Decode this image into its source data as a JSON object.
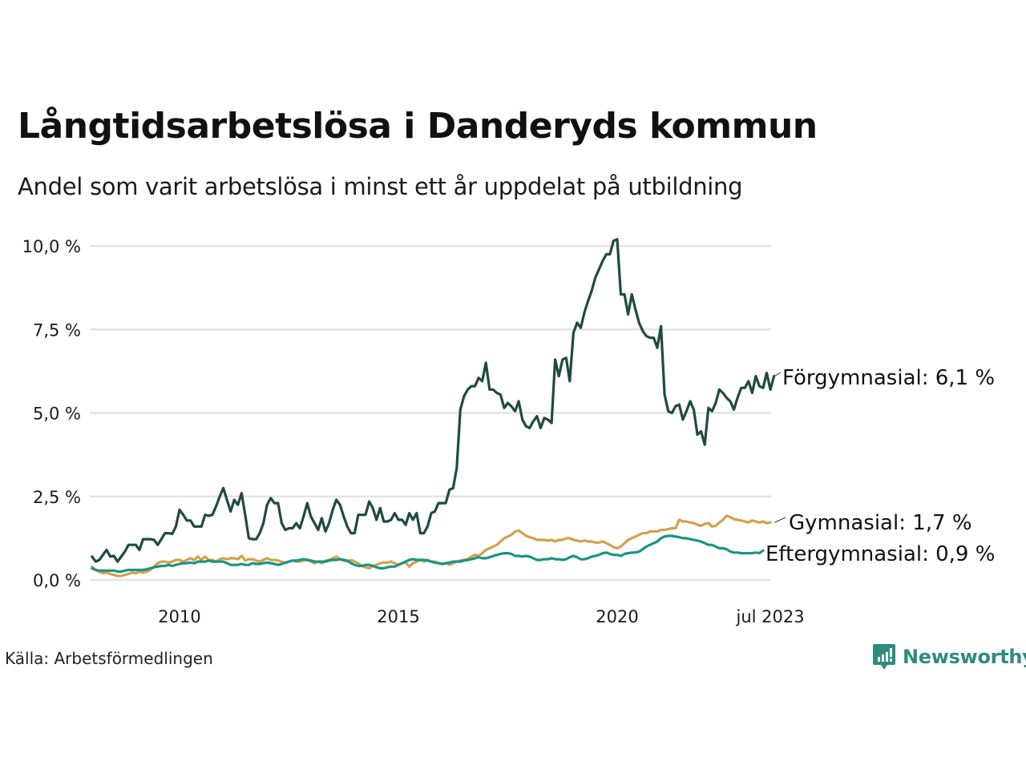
{
  "header": {
    "title": "Långtidsarbetslösa i Danderyds kommun",
    "subtitle": "Andel som varit arbetslösa i minst ett år uppdelat på utbildning"
  },
  "footer": {
    "source": "Källa: Arbetsförmedlingen",
    "logo_text": "Newsworthy",
    "logo_icon": "bar-chart-speech-bubble-icon",
    "brand_color": "#2e8b7e"
  },
  "chart_data": {
    "type": "line",
    "title": "Långtidsarbetslösa i Danderyds kommun",
    "subtitle": "Andel som varit arbetslösa i minst ett år uppdelat på utbildning",
    "xlabel": "",
    "ylabel": "",
    "x_start": "2008-01",
    "x_end": "2023-07",
    "x_frequency": "monthly",
    "x_ticks": [
      {
        "label": "2010",
        "date": "2010-01"
      },
      {
        "label": "2015",
        "date": "2015-01"
      },
      {
        "label": "2020",
        "date": "2020-01"
      },
      {
        "label": "jul 2023",
        "date": "2023-07"
      }
    ],
    "ylim": [
      0,
      10
    ],
    "y_ticks": [
      {
        "value": 0,
        "label": "0,0 %"
      },
      {
        "value": 2.5,
        "label": "2,5 %"
      },
      {
        "value": 5,
        "label": "5,0 %"
      },
      {
        "value": 7.5,
        "label": "7,5 %"
      },
      {
        "value": 10,
        "label": "10,0 %"
      }
    ],
    "grid": "horizontal",
    "legend": "direct-labels-right",
    "series": [
      {
        "name": "Förgymnasial",
        "label": "Förgymnasial: 6,1 %",
        "color": "#1f4a42",
        "values": [
          0.7,
          0.55,
          0.6,
          0.75,
          0.9,
          0.7,
          0.72,
          0.55,
          0.7,
          0.85,
          1.05,
          1.05,
          1.05,
          0.9,
          1.22,
          1.22,
          1.22,
          1.2,
          1.05,
          1.22,
          1.4,
          1.4,
          1.38,
          1.6,
          2.1,
          1.95,
          1.78,
          1.78,
          1.6,
          1.6,
          1.6,
          1.95,
          1.92,
          1.95,
          2.2,
          2.5,
          2.75,
          2.4,
          2.05,
          2.4,
          2.25,
          2.6,
          1.95,
          1.25,
          1.22,
          1.22,
          1.4,
          1.7,
          2.25,
          2.45,
          2.3,
          2.3,
          1.7,
          1.5,
          1.55,
          1.55,
          1.7,
          1.55,
          1.9,
          2.3,
          1.9,
          1.7,
          1.5,
          1.85,
          1.45,
          1.7,
          2.1,
          2.4,
          2.25,
          1.9,
          1.6,
          1.4,
          1.4,
          1.95,
          1.95,
          1.95,
          2.35,
          2.15,
          1.8,
          2.15,
          1.75,
          1.75,
          1.8,
          2.0,
          1.8,
          1.8,
          1.65,
          2.0,
          1.8,
          2.0,
          1.4,
          1.4,
          1.6,
          2.0,
          2.05,
          2.3,
          2.3,
          2.3,
          2.7,
          2.75,
          3.35,
          5.1,
          5.5,
          5.7,
          5.8,
          5.8,
          6.05,
          5.95,
          6.5,
          5.7,
          5.7,
          5.6,
          5.55,
          5.15,
          5.3,
          5.2,
          5.05,
          5.35,
          4.8,
          4.6,
          4.55,
          4.75,
          4.9,
          4.55,
          4.85,
          4.8,
          4.7,
          6.6,
          6.1,
          6.6,
          6.65,
          5.95,
          7.4,
          7.7,
          7.55,
          8.0,
          8.35,
          8.65,
          9.05,
          9.3,
          9.55,
          9.75,
          9.75,
          10.15,
          10.2,
          8.55,
          8.55,
          7.95,
          8.55,
          8.1,
          7.7,
          7.45,
          7.3,
          7.25,
          7.25,
          6.95,
          7.6,
          5.55,
          5.05,
          5.0,
          5.2,
          5.25,
          4.8,
          5.05,
          5.35,
          5.1,
          4.35,
          4.45,
          4.05,
          5.15,
          5.05,
          5.3,
          5.7,
          5.6,
          5.45,
          5.35,
          5.1,
          5.45,
          5.75,
          5.75,
          5.95,
          5.6,
          6.1,
          5.8,
          5.75,
          6.2,
          5.7,
          6.1
        ]
      },
      {
        "name": "Gymnasial",
        "label": "Gymnasial: 1,7 %",
        "color": "#d4a04c",
        "values": [
          0.4,
          0.3,
          0.25,
          0.2,
          0.22,
          0.18,
          0.15,
          0.12,
          0.12,
          0.15,
          0.18,
          0.22,
          0.2,
          0.25,
          0.22,
          0.25,
          0.3,
          0.4,
          0.5,
          0.55,
          0.55,
          0.52,
          0.55,
          0.6,
          0.6,
          0.55,
          0.6,
          0.65,
          0.6,
          0.7,
          0.6,
          0.7,
          0.6,
          0.6,
          0.55,
          0.62,
          0.65,
          0.62,
          0.65,
          0.65,
          0.62,
          0.72,
          0.58,
          0.62,
          0.62,
          0.58,
          0.55,
          0.6,
          0.65,
          0.6,
          0.6,
          0.58,
          0.55,
          0.5,
          0.55,
          0.58,
          0.55,
          0.55,
          0.58,
          0.6,
          0.55,
          0.5,
          0.55,
          0.5,
          0.58,
          0.6,
          0.65,
          0.7,
          0.62,
          0.58,
          0.55,
          0.6,
          0.55,
          0.5,
          0.42,
          0.38,
          0.35,
          0.42,
          0.45,
          0.5,
          0.52,
          0.52,
          0.55,
          0.5,
          0.45,
          0.5,
          0.52,
          0.4,
          0.5,
          0.55,
          0.6,
          0.55,
          0.6,
          0.55,
          0.55,
          0.5,
          0.48,
          0.5,
          0.45,
          0.5,
          0.55,
          0.58,
          0.6,
          0.62,
          0.7,
          0.75,
          0.72,
          0.8,
          0.9,
          0.95,
          1.0,
          1.05,
          1.15,
          1.25,
          1.3,
          1.35,
          1.45,
          1.48,
          1.4,
          1.32,
          1.28,
          1.25,
          1.2,
          1.2,
          1.2,
          1.18,
          1.2,
          1.15,
          1.2,
          1.2,
          1.25,
          1.25,
          1.2,
          1.18,
          1.15,
          1.18,
          1.15,
          1.15,
          1.12,
          1.12,
          1.15,
          1.1,
          1.05,
          0.98,
          0.95,
          1.0,
          1.1,
          1.2,
          1.25,
          1.3,
          1.35,
          1.4,
          1.4,
          1.45,
          1.45,
          1.45,
          1.5,
          1.5,
          1.52,
          1.55,
          1.55,
          1.8,
          1.75,
          1.75,
          1.72,
          1.7,
          1.65,
          1.62,
          1.68,
          1.7,
          1.6,
          1.62,
          1.72,
          1.8,
          1.92,
          1.88,
          1.82,
          1.8,
          1.78,
          1.75,
          1.72,
          1.78,
          1.75,
          1.72,
          1.75,
          1.7,
          1.72
        ]
      },
      {
        "name": "Eftergymnasial",
        "label": "Eftergymnasial: 0,9 %",
        "color": "#1a9582",
        "values": [
          0.35,
          0.3,
          0.28,
          0.28,
          0.28,
          0.28,
          0.28,
          0.25,
          0.25,
          0.28,
          0.3,
          0.3,
          0.3,
          0.3,
          0.3,
          0.32,
          0.35,
          0.38,
          0.4,
          0.42,
          0.42,
          0.45,
          0.42,
          0.45,
          0.48,
          0.5,
          0.5,
          0.52,
          0.5,
          0.55,
          0.55,
          0.55,
          0.58,
          0.55,
          0.55,
          0.55,
          0.55,
          0.5,
          0.45,
          0.45,
          0.45,
          0.48,
          0.45,
          0.45,
          0.5,
          0.48,
          0.48,
          0.5,
          0.52,
          0.5,
          0.48,
          0.45,
          0.48,
          0.52,
          0.55,
          0.58,
          0.58,
          0.6,
          0.62,
          0.6,
          0.58,
          0.55,
          0.55,
          0.55,
          0.55,
          0.58,
          0.6,
          0.6,
          0.62,
          0.6,
          0.58,
          0.5,
          0.45,
          0.42,
          0.42,
          0.45,
          0.45,
          0.42,
          0.38,
          0.35,
          0.35,
          0.38,
          0.4,
          0.4,
          0.45,
          0.5,
          0.55,
          0.6,
          0.62,
          0.6,
          0.6,
          0.6,
          0.58,
          0.55,
          0.52,
          0.5,
          0.48,
          0.5,
          0.52,
          0.55,
          0.55,
          0.55,
          0.58,
          0.6,
          0.62,
          0.65,
          0.68,
          0.65,
          0.65,
          0.68,
          0.72,
          0.75,
          0.78,
          0.8,
          0.8,
          0.78,
          0.72,
          0.72,
          0.7,
          0.72,
          0.7,
          0.65,
          0.6,
          0.6,
          0.62,
          0.62,
          0.65,
          0.62,
          0.62,
          0.6,
          0.62,
          0.68,
          0.72,
          0.68,
          0.62,
          0.62,
          0.65,
          0.7,
          0.72,
          0.75,
          0.8,
          0.82,
          0.78,
          0.75,
          0.75,
          0.72,
          0.78,
          0.8,
          0.82,
          0.82,
          0.85,
          0.92,
          1.0,
          1.05,
          1.1,
          1.15,
          1.25,
          1.3,
          1.32,
          1.32,
          1.3,
          1.28,
          1.25,
          1.25,
          1.22,
          1.2,
          1.18,
          1.15,
          1.1,
          1.05,
          1.05,
          1.0,
          0.95,
          0.95,
          0.92,
          0.85,
          0.82,
          0.82,
          0.8,
          0.8,
          0.8,
          0.8,
          0.82,
          0.8,
          0.88
        ]
      }
    ]
  }
}
